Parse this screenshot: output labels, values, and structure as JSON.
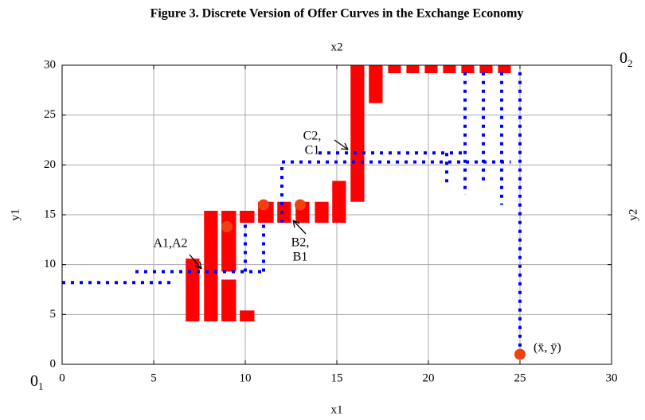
{
  "chart_data": {
    "type": "offer-curve",
    "title": "Figure 3. Discrete Version of Offer Curves in the Exchange Economy",
    "x_label": "x1",
    "x2_label": "x2",
    "y_label": "y1",
    "y2_label": "y2",
    "origin1": {
      "main": "0",
      "sub": "1"
    },
    "origin2": {
      "main": "0",
      "sub": "2"
    },
    "xlim": [
      0,
      30
    ],
    "ylim": [
      0,
      30
    ],
    "xticks": [
      0,
      5,
      10,
      15,
      20,
      25,
      30
    ],
    "yticks": [
      0,
      5,
      10,
      15,
      20,
      25,
      30
    ],
    "grid": true,
    "rect_color": "#ff0000",
    "line_color": "#0000ff",
    "point_color": "#f04010",
    "rects": [
      {
        "x": [
          6.75,
          7.5
        ],
        "y": [
          4.3,
          10.6
        ]
      },
      {
        "x": [
          7.75,
          8.5
        ],
        "y": [
          4.3,
          15.4
        ]
      },
      {
        "x": [
          8.7,
          9.5
        ],
        "y": [
          9.3,
          15.4
        ]
      },
      {
        "x": [
          8.7,
          9.5
        ],
        "y": [
          4.3,
          8.5
        ]
      },
      {
        "x": [
          9.7,
          10.5
        ],
        "y": [
          14.2,
          15.4
        ]
      },
      {
        "x": [
          9.7,
          10.5
        ],
        "y": [
          4.3,
          5.4
        ]
      },
      {
        "x": [
          10.7,
          11.55
        ],
        "y": [
          14.2,
          16.3
        ]
      },
      {
        "x": [
          11.75,
          12.5
        ],
        "y": [
          14.2,
          16.3
        ]
      },
      {
        "x": [
          12.75,
          13.5
        ],
        "y": [
          14.2,
          16.3
        ]
      },
      {
        "x": [
          13.8,
          14.55
        ],
        "y": [
          14.2,
          16.3
        ]
      },
      {
        "x": [
          14.75,
          15.5
        ],
        "y": [
          14.2,
          18.4
        ]
      },
      {
        "x": [
          15.75,
          16.5
        ],
        "y": [
          16.3,
          30
        ]
      },
      {
        "x": [
          16.75,
          17.5
        ],
        "y": [
          26.2,
          30
        ]
      },
      {
        "x": [
          17.8,
          18.5
        ],
        "y": [
          29.2,
          30
        ]
      },
      {
        "x": [
          18.8,
          19.5
        ],
        "y": [
          29.2,
          30
        ]
      },
      {
        "x": [
          19.8,
          20.5
        ],
        "y": [
          29.2,
          30
        ]
      },
      {
        "x": [
          20.8,
          21.5
        ],
        "y": [
          29.2,
          30
        ]
      },
      {
        "x": [
          21.8,
          22.5
        ],
        "y": [
          29.2,
          30
        ]
      },
      {
        "x": [
          22.8,
          23.5
        ],
        "y": [
          29.2,
          30
        ]
      },
      {
        "x": [
          23.8,
          24.5
        ],
        "y": [
          29.2,
          30
        ]
      }
    ],
    "lines": [
      {
        "x": [
          0,
          6.2
        ],
        "y": [
          8.2,
          8.2
        ]
      },
      {
        "x": [
          4,
          11
        ],
        "y": [
          9.3,
          9.3
        ]
      },
      {
        "x": [
          10,
          10
        ],
        "y": [
          9.3,
          14.2
        ]
      },
      {
        "x": [
          11,
          11
        ],
        "y": [
          9.3,
          14.2
        ]
      },
      {
        "x": [
          12,
          12
        ],
        "y": [
          14.2,
          20.3
        ]
      },
      {
        "x": [
          12,
          24.5
        ],
        "y": [
          20.3,
          20.3
        ]
      },
      {
        "x": [
          14,
          22
        ],
        "y": [
          21.2,
          21.2
        ]
      },
      {
        "x": [
          21,
          21
        ],
        "y": [
          21.2,
          18
        ]
      },
      {
        "x": [
          22,
          22
        ],
        "y": [
          29.3,
          17
        ]
      },
      {
        "x": [
          23,
          23
        ],
        "y": [
          29.3,
          18
        ]
      },
      {
        "x": [
          24,
          24
        ],
        "y": [
          29.3,
          16
        ]
      },
      {
        "x": [
          25,
          25
        ],
        "y": [
          29.3,
          1
        ]
      }
    ],
    "points": {
      "x": [
        9,
        11,
        13,
        25
      ],
      "y": [
        13.8,
        16,
        16,
        1
      ]
    },
    "annotations": [
      {
        "lines": [
          "A1,A2"
        ]
      },
      {
        "lines": [
          "B2,",
          "B1"
        ]
      },
      {
        "lines": [
          "C2,",
          "C1"
        ]
      }
    ],
    "endpoint_label": "(x̄, ȳ)"
  }
}
